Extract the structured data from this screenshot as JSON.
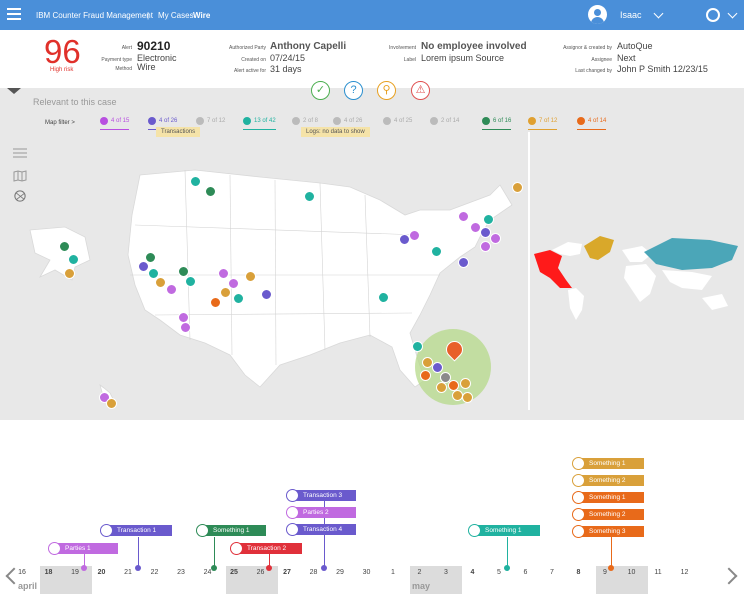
{
  "app": {
    "name": "IBM Counter Fraud Management",
    "breadcrumb_sep": "|",
    "section": "My Cases",
    "case_name": "Wire",
    "user": "Isaac"
  },
  "risk": {
    "score": "96",
    "label": "High risk"
  },
  "alert": {
    "alert_label": "Alert",
    "alert_value": "90210",
    "payment_label": "Payment type",
    "payment_value": "Electronic",
    "method_label": "Method",
    "method_value": "Wire",
    "party_label": "Authorized Party",
    "party_value": "Anthony Capelli",
    "created_label": "Created on",
    "created_value": "07/24/15",
    "active_label": "Alert active for",
    "active_value": "31 days",
    "involvement_label": "Involvement",
    "involvement_value": "No employee involved",
    "label_label": "Label",
    "label_value": "Lorem ipsum Source",
    "assignor_label": "Assignor & created by",
    "assignor_value": "AutoQue",
    "assignee_label": "Assignee",
    "assignee_value": "Next",
    "changed_label": "Last changed by",
    "changed_value": "John P Smith 12/23/15"
  },
  "actions": [
    {
      "name": "check",
      "glyph": "✓",
      "color": "#4caf50"
    },
    {
      "name": "question",
      "glyph": "?",
      "color": "#2a8fcf"
    },
    {
      "name": "search",
      "glyph": "⚲",
      "color": "#e8a020"
    },
    {
      "name": "warning",
      "glyph": "⚠",
      "color": "#e05050"
    }
  ],
  "relevant": "Relevant to this case",
  "map_filter_label": "Map filter >",
  "filters": [
    {
      "text": "4 of 15",
      "color": "#b84fe0",
      "active": true
    },
    {
      "text": "4 of 26",
      "color": "#6a5acd",
      "active": true
    },
    {
      "text": "7 of 12",
      "color": "#bbbbbb",
      "active": false
    },
    {
      "text": "13 of 42",
      "color": "#20b2a0",
      "active": true
    },
    {
      "text": "2 of 8",
      "color": "#bbbbbb",
      "active": false
    },
    {
      "text": "4 of 26",
      "color": "#bbbbbb",
      "active": false
    },
    {
      "text": "4 of 25",
      "color": "#bbbbbb",
      "active": false
    },
    {
      "text": "2 of 14",
      "color": "#bbbbbb",
      "active": false
    },
    {
      "text": "6 of 16",
      "color": "#2e8b57",
      "active": true
    },
    {
      "text": "7 of 12",
      "color": "#e0a030",
      "active": true
    },
    {
      "text": "4 of 14",
      "color": "#e86a1a",
      "active": true
    }
  ],
  "tooltips": {
    "transactions": "Transactions",
    "logs": "Logs: no data to show"
  },
  "timeline": {
    "months": [
      "april",
      "may"
    ],
    "days": [
      "16",
      "18",
      "19",
      "20",
      "21",
      "22",
      "23",
      "24",
      "25",
      "26",
      "27",
      "28",
      "29",
      "30",
      "1",
      "2",
      "3",
      "4",
      "5",
      "6",
      "7",
      "8",
      "9",
      "10",
      "11",
      "12"
    ],
    "bold_days": [
      "18",
      "20",
      "25",
      "27",
      "4",
      "8"
    ],
    "events": [
      {
        "label": "Parties 1",
        "color": "#c06ae0"
      },
      {
        "label": "Transaction 1",
        "color": "#6a5acd"
      },
      {
        "label": "Something 1",
        "color": "#2e8b57"
      },
      {
        "label": "Transaction 2",
        "color": "#e0303a"
      },
      {
        "label": "Transaction 3",
        "color": "#6a5acd"
      },
      {
        "label": "Parties 2",
        "color": "#c06ae0"
      },
      {
        "label": "Transaction 4",
        "color": "#6a5acd"
      },
      {
        "label": "Something 1",
        "color": "#20b2a0"
      },
      {
        "label": "Something 1",
        "color": "#d9a03a"
      },
      {
        "label": "Something 2",
        "color": "#d9a03a"
      },
      {
        "label": "Something 1",
        "color": "#e86a1a"
      },
      {
        "label": "Something 2",
        "color": "#e86a1a"
      },
      {
        "label": "Something 3",
        "color": "#e86a1a"
      }
    ]
  }
}
